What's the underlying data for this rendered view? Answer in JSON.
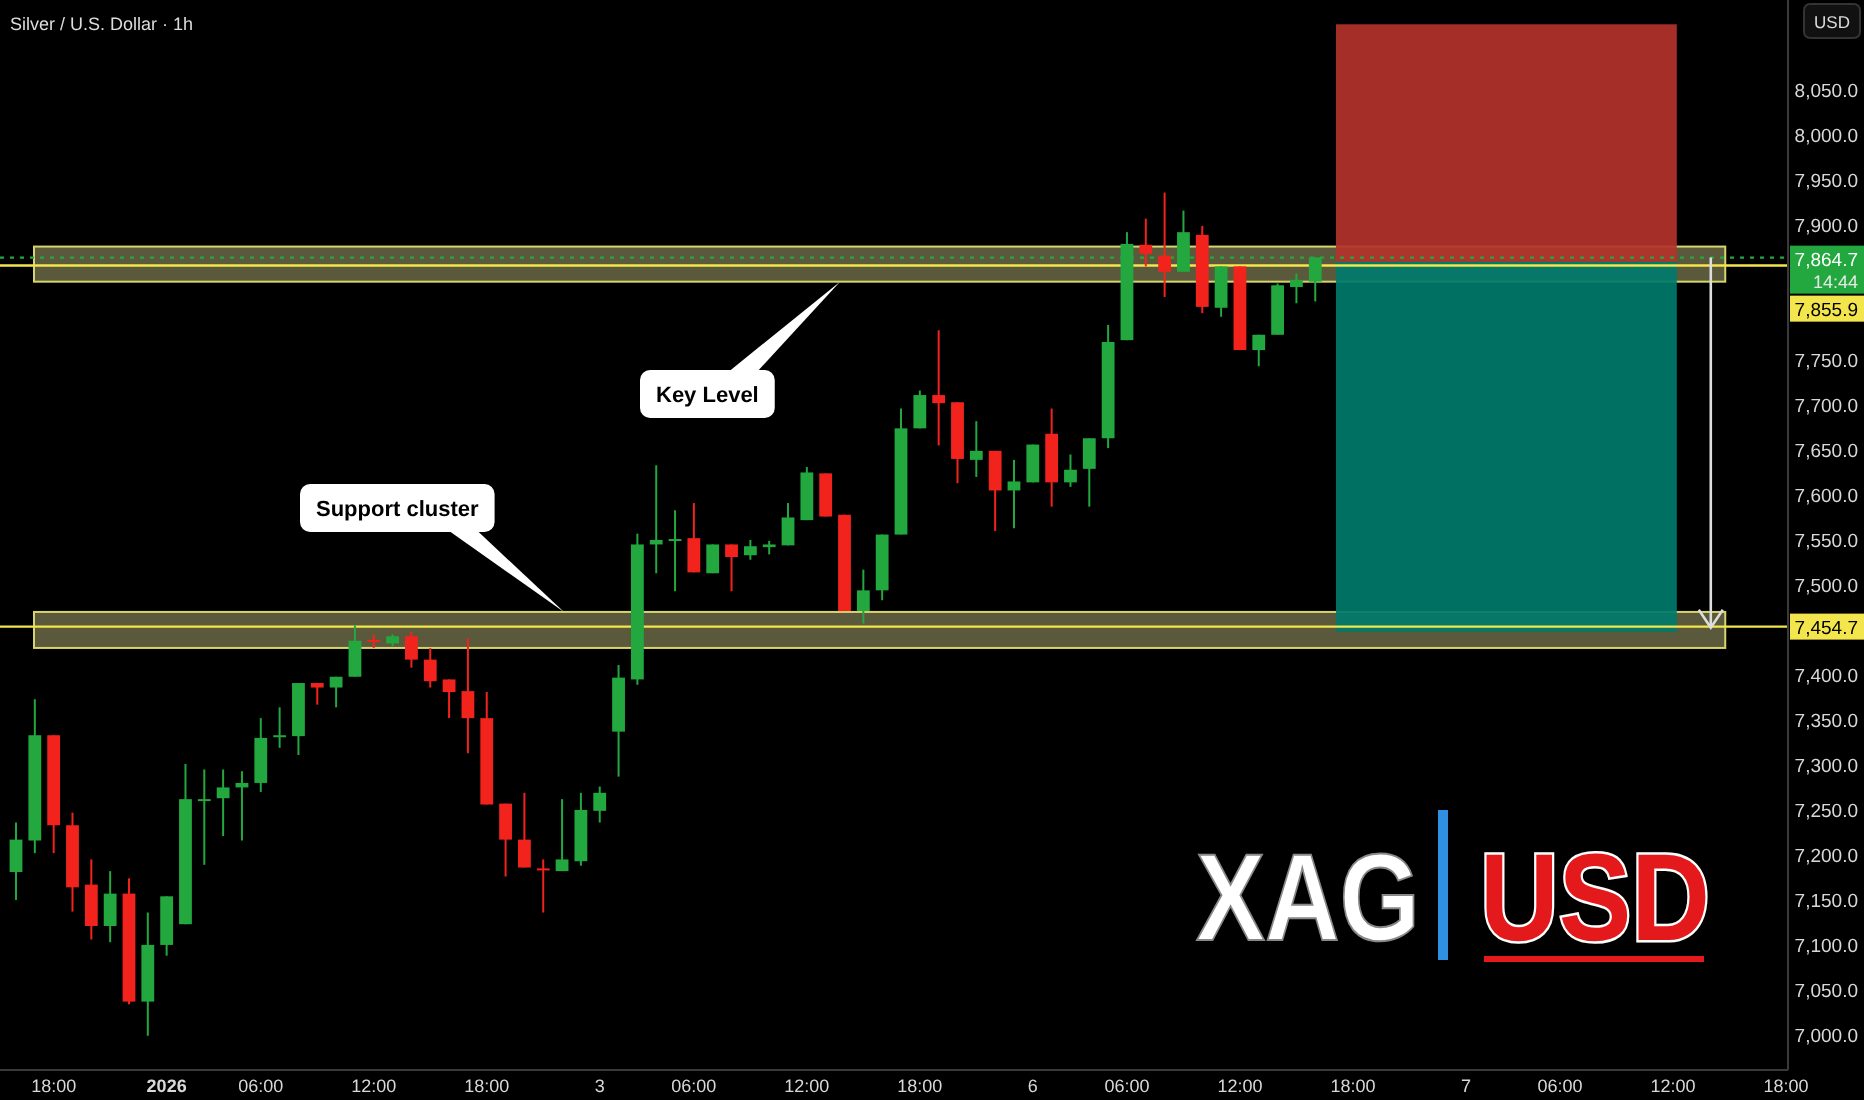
{
  "chart_data": {
    "type": "candlestick",
    "title": "Silver / U.S. Dollar · 1h",
    "ylabel": "USD",
    "categories": [
      null,
      null,
      "18:00",
      null,
      null,
      null,
      null,
      null,
      "2026",
      null,
      null,
      null,
      null,
      "06:00",
      null,
      null,
      null,
      null,
      null,
      "12:00",
      null,
      null,
      null,
      null,
      null,
      "18:00",
      null,
      null,
      null,
      null,
      null,
      "3",
      null,
      null,
      null,
      null,
      "06:00",
      null,
      null,
      null,
      null,
      null,
      "12:00",
      null,
      null,
      null,
      null,
      null,
      "18:00",
      null,
      null,
      null,
      null,
      null,
      "6",
      null,
      null,
      null,
      null,
      "06:00",
      null,
      null,
      null,
      null,
      null,
      "12:00",
      null,
      null,
      null,
      null,
      null,
      "18:00",
      null,
      null,
      null,
      null,
      null,
      "7",
      null,
      null,
      null,
      null,
      "06:00",
      null,
      null,
      null,
      null,
      null,
      "12:00",
      null,
      null,
      null,
      null,
      null,
      "18:00"
    ],
    "ohlc": [
      [
        7182,
        7237,
        7151,
        7218
      ],
      [
        7217,
        7374,
        7203,
        7334
      ],
      [
        7334,
        7334,
        7203,
        7234
      ],
      [
        7234,
        7248,
        7138,
        7165
      ],
      [
        7168,
        7196,
        7107,
        7122
      ],
      [
        7122,
        7183,
        7104,
        7158
      ],
      [
        7158,
        7175,
        7035,
        7038
      ],
      [
        7038,
        7137,
        7000,
        7101
      ],
      [
        7101,
        7155,
        7089,
        7155
      ],
      [
        7124,
        7302,
        7124,
        7263
      ],
      [
        7261,
        7296,
        7190,
        7263
      ],
      [
        7264,
        7296,
        7222,
        7276
      ],
      [
        7276,
        7294,
        7217,
        7281
      ],
      [
        7281,
        7353,
        7271,
        7331
      ],
      [
        7333,
        7365,
        7320,
        7334
      ],
      [
        7333,
        7392,
        7312,
        7392
      ],
      [
        7392,
        7392,
        7368,
        7387
      ],
      [
        7387,
        7399,
        7365,
        7399
      ],
      [
        7399,
        7456,
        7399,
        7439
      ],
      [
        7440,
        7446,
        7431,
        7439
      ],
      [
        7436,
        7446,
        7433,
        7444
      ],
      [
        7444,
        7449,
        7409,
        7418
      ],
      [
        7418,
        7431,
        7387,
        7394
      ],
      [
        7396,
        7396,
        7353,
        7382
      ],
      [
        7383,
        7442,
        7314,
        7353
      ],
      [
        7353,
        7382,
        7257,
        7257
      ],
      [
        7258,
        7258,
        7177,
        7218
      ],
      [
        7218,
        7270,
        7187,
        7187
      ],
      [
        7186,
        7196,
        7137,
        7184
      ],
      [
        7183,
        7263,
        7183,
        7196
      ],
      [
        7194,
        7270,
        7189,
        7251
      ],
      [
        7250,
        7277,
        7237,
        7270
      ],
      [
        7338,
        7412,
        7288,
        7398
      ],
      [
        7396,
        7558,
        7390,
        7546
      ],
      [
        7546,
        7634,
        7514,
        7551
      ],
      [
        7550,
        7584,
        7494,
        7552
      ],
      [
        7553,
        7592,
        7515,
        7515
      ],
      [
        7514,
        7546,
        7514,
        7546
      ],
      [
        7546,
        7546,
        7494,
        7532
      ],
      [
        7534,
        7551,
        7529,
        7544
      ],
      [
        7543,
        7550,
        7535,
        7546
      ],
      [
        7545,
        7592,
        7545,
        7576
      ],
      [
        7573,
        7632,
        7573,
        7626
      ],
      [
        7625,
        7625,
        7577,
        7577
      ],
      [
        7579,
        7579,
        7472,
        7472
      ],
      [
        7472,
        7518,
        7458,
        7495
      ],
      [
        7495,
        7557,
        7484,
        7557
      ],
      [
        7557,
        7697,
        7557,
        7675
      ],
      [
        7675,
        7717,
        7675,
        7712
      ],
      [
        7712,
        7784,
        7656,
        7703
      ],
      [
        7704,
        7704,
        7614,
        7641
      ],
      [
        7640,
        7683,
        7621,
        7650
      ],
      [
        7650,
        7650,
        7561,
        7606
      ],
      [
        7606,
        7640,
        7564,
        7616
      ],
      [
        7615,
        7657,
        7615,
        7657
      ],
      [
        7669,
        7697,
        7588,
        7615
      ],
      [
        7615,
        7646,
        7610,
        7629
      ],
      [
        7630,
        7664,
        7588,
        7664
      ],
      [
        7664,
        7790,
        7653,
        7771
      ],
      [
        7773,
        7893,
        7773,
        7880
      ],
      [
        7879,
        7908,
        7855,
        7869
      ],
      [
        7867,
        7937,
        7821,
        7849
      ],
      [
        7849,
        7917,
        7849,
        7893
      ],
      [
        7890,
        7900,
        7803,
        7810
      ],
      [
        7809,
        7855,
        7799,
        7855
      ],
      [
        7855,
        7855,
        7762,
        7762
      ],
      [
        7762,
        7779,
        7744,
        7779
      ],
      [
        7779,
        7836,
        7779,
        7834
      ],
      [
        7832,
        7847,
        7814,
        7840
      ],
      [
        7838,
        7865,
        7816,
        7865
      ],
      null,
      null,
      null,
      null,
      null,
      null,
      null,
      null,
      null,
      null,
      null,
      null,
      null,
      null,
      null,
      null,
      null,
      null,
      null,
      null,
      null,
      null,
      null,
      null,
      null
    ],
    "ylim": [
      6962,
      8151
    ],
    "yticks": [
      {
        "value": 7000,
        "label": "7,000.0"
      },
      {
        "value": 7050,
        "label": "7,050.0"
      },
      {
        "value": 7100,
        "label": "7,100.0"
      },
      {
        "value": 7150,
        "label": "7,150.0"
      },
      {
        "value": 7200,
        "label": "7,200.0"
      },
      {
        "value": 7250,
        "label": "7,250.0"
      },
      {
        "value": 7300,
        "label": "7,300.0"
      },
      {
        "value": 7350,
        "label": "7,350.0"
      },
      {
        "value": 7400,
        "label": "7,400.0"
      },
      {
        "value": 7500,
        "label": "7,500.0"
      },
      {
        "value": 7550,
        "label": "7,550.0"
      },
      {
        "value": 7600,
        "label": "7,600.0"
      },
      {
        "value": 7650,
        "label": "7,650.0"
      },
      {
        "value": 7700,
        "label": "7,700.0"
      },
      {
        "value": 7750,
        "label": "7,750.0"
      },
      {
        "value": 7900,
        "label": "7,900.0"
      },
      {
        "value": 7950,
        "label": "7,950.0"
      },
      {
        "value": 8000,
        "label": "8,000.0"
      },
      {
        "value": 8050,
        "label": "8,050.0"
      }
    ],
    "bands": [
      {
        "axis": "y",
        "from": 7838,
        "to": 7877,
        "color": "#6b6945"
      },
      {
        "axis": "y",
        "from": 7431,
        "to": 7471,
        "color": "#6b6945"
      },
      {
        "axis": "y",
        "from": 7860,
        "to": 8124,
        "color": "#b3322b"
      },
      {
        "axis": "y",
        "from": 7449,
        "to": 7860,
        "color": "#00796b"
      }
    ],
    "ref_lines": [
      {
        "axis": "y",
        "value": 7855.9,
        "label": "7,855.9",
        "color": "#f2e64c",
        "line_style": "solid"
      },
      {
        "axis": "y",
        "value": 7454.7,
        "label": "7,454.7",
        "color": "#f2e64c",
        "line_style": "solid"
      },
      {
        "axis": "y",
        "value": 7864.7,
        "label": "7,864.7",
        "color": "#22a83f",
        "line_style": "dotted"
      }
    ],
    "annotations": [
      "XAG",
      "USD",
      "14:44",
      "Key Level",
      "Support cluster"
    ],
    "grid": false
  }
}
